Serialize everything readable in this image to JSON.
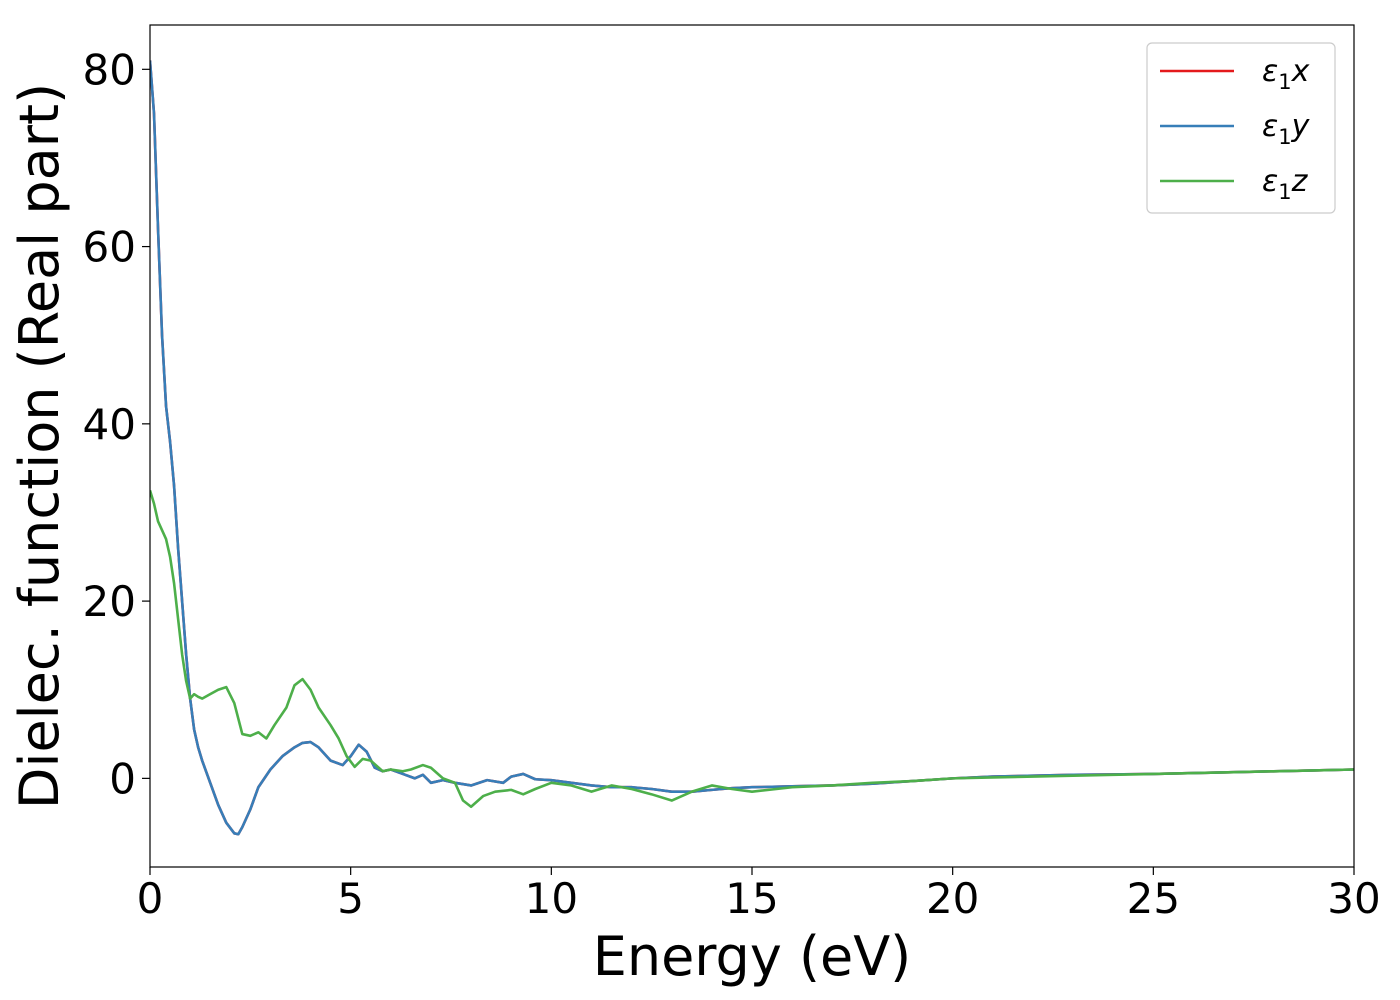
{
  "chart_data": {
    "type": "line",
    "title": "",
    "xlabel": "Energy (eV)",
    "ylabel": "Dielec. function (Real part)",
    "xlim": [
      0,
      30
    ],
    "ylim": [
      -10,
      85
    ],
    "xticks": [
      0,
      5,
      10,
      15,
      20,
      25,
      30
    ],
    "yticks": [
      0,
      20,
      40,
      60,
      80
    ],
    "grid": false,
    "legend_position": "top-right",
    "series": [
      {
        "name": "ε₁x",
        "legend_main": "ε",
        "legend_sub": "1",
        "legend_var": "x",
        "color": "#e41a1c",
        "x": [
          0,
          0.1,
          0.2,
          0.3,
          0.4,
          0.5,
          0.6,
          0.7,
          0.8,
          0.9,
          1.0,
          1.1,
          1.2,
          1.3,
          1.5,
          1.7,
          1.9,
          2.1,
          2.2,
          2.3,
          2.5,
          2.7,
          3.0,
          3.3,
          3.6,
          3.8,
          4.0,
          4.2,
          4.5,
          4.8,
          5.0,
          5.2,
          5.4,
          5.6,
          5.8,
          6.0,
          6.3,
          6.6,
          6.8,
          7.0,
          7.3,
          7.6,
          8.0,
          8.4,
          8.8,
          9.0,
          9.3,
          9.6,
          10.0,
          10.5,
          11.0,
          11.5,
          12.0,
          12.5,
          13.0,
          13.5,
          14.0,
          14.5,
          15.0,
          16.0,
          17.0,
          18.0,
          19.0,
          20.0,
          21.0,
          22.0,
          23.0,
          24.0,
          25.0,
          26.0,
          27.0,
          28.0,
          29.0,
          30.0
        ],
        "y": [
          81,
          75,
          62,
          50,
          42,
          38,
          33,
          26,
          20,
          14,
          9,
          5.5,
          3.5,
          2,
          -0.5,
          -3,
          -5,
          -6.2,
          -6.3,
          -5.5,
          -3.5,
          -1,
          1,
          2.5,
          3.5,
          4,
          4.1,
          3.5,
          2,
          1.5,
          2.5,
          3.8,
          3,
          1.2,
          0.8,
          1,
          0.5,
          0,
          0.4,
          -0.5,
          -0.2,
          -0.5,
          -0.8,
          -0.2,
          -0.5,
          0.2,
          0.5,
          -0.1,
          -0.2,
          -0.5,
          -0.8,
          -1,
          -1,
          -1.2,
          -1.5,
          -1.5,
          -1.3,
          -1.1,
          -1,
          -0.9,
          -0.8,
          -0.6,
          -0.3,
          0,
          0.2,
          0.3,
          0.4,
          0.45,
          0.5,
          0.6,
          0.7,
          0.8,
          0.9,
          1
        ]
      },
      {
        "name": "ε₁y",
        "legend_main": "ε",
        "legend_sub": "1",
        "legend_var": "y",
        "color": "#377eb8",
        "x": [
          0,
          0.1,
          0.2,
          0.3,
          0.4,
          0.5,
          0.6,
          0.7,
          0.8,
          0.9,
          1.0,
          1.1,
          1.2,
          1.3,
          1.5,
          1.7,
          1.9,
          2.1,
          2.2,
          2.3,
          2.5,
          2.7,
          3.0,
          3.3,
          3.6,
          3.8,
          4.0,
          4.2,
          4.5,
          4.8,
          5.0,
          5.2,
          5.4,
          5.6,
          5.8,
          6.0,
          6.3,
          6.6,
          6.8,
          7.0,
          7.3,
          7.6,
          8.0,
          8.4,
          8.8,
          9.0,
          9.3,
          9.6,
          10.0,
          10.5,
          11.0,
          11.5,
          12.0,
          12.5,
          13.0,
          13.5,
          14.0,
          14.5,
          15.0,
          16.0,
          17.0,
          18.0,
          19.0,
          20.0,
          21.0,
          22.0,
          23.0,
          24.0,
          25.0,
          26.0,
          27.0,
          28.0,
          29.0,
          30.0
        ],
        "y": [
          81,
          75,
          62,
          50,
          42,
          38,
          33,
          26,
          20,
          14,
          9,
          5.5,
          3.5,
          2,
          -0.5,
          -3,
          -5,
          -6.2,
          -6.3,
          -5.5,
          -3.5,
          -1,
          1,
          2.5,
          3.5,
          4,
          4.1,
          3.5,
          2,
          1.5,
          2.5,
          3.8,
          3,
          1.2,
          0.8,
          1,
          0.5,
          0,
          0.4,
          -0.5,
          -0.2,
          -0.5,
          -0.8,
          -0.2,
          -0.5,
          0.2,
          0.5,
          -0.1,
          -0.2,
          -0.5,
          -0.8,
          -1,
          -1,
          -1.2,
          -1.5,
          -1.5,
          -1.3,
          -1.1,
          -1,
          -0.9,
          -0.8,
          -0.6,
          -0.3,
          0,
          0.2,
          0.3,
          0.4,
          0.45,
          0.5,
          0.6,
          0.7,
          0.8,
          0.9,
          1
        ]
      },
      {
        "name": "ε₁z",
        "legend_main": "ε",
        "legend_sub": "1",
        "legend_var": "z",
        "color": "#4daf4a",
        "x": [
          0,
          0.1,
          0.2,
          0.3,
          0.4,
          0.5,
          0.6,
          0.7,
          0.8,
          0.9,
          1.0,
          1.1,
          1.2,
          1.3,
          1.5,
          1.7,
          1.9,
          2.1,
          2.3,
          2.5,
          2.7,
          2.9,
          3.1,
          3.4,
          3.6,
          3.8,
          4.0,
          4.2,
          4.5,
          4.7,
          4.9,
          5.1,
          5.3,
          5.5,
          5.8,
          6.0,
          6.3,
          6.5,
          6.8,
          7.0,
          7.3,
          7.6,
          7.8,
          8.0,
          8.3,
          8.6,
          9.0,
          9.3,
          9.6,
          10.0,
          10.5,
          11.0,
          11.5,
          12.0,
          12.5,
          13.0,
          13.5,
          14.0,
          14.5,
          15.0,
          16.0,
          17.0,
          18.0,
          19.0,
          20.0,
          21.0,
          22.0,
          23.0,
          24.0,
          25.0,
          26.0,
          27.0,
          28.0,
          29.0,
          30.0
        ],
        "y": [
          32.5,
          31,
          29,
          28,
          27,
          25,
          22,
          18,
          14,
          11,
          9,
          9.5,
          9.2,
          9,
          9.5,
          10,
          10.3,
          8.5,
          5,
          4.8,
          5.2,
          4.5,
          6,
          8,
          10.5,
          11.2,
          10,
          8,
          6,
          4.5,
          2.5,
          1.3,
          2.2,
          2,
          0.8,
          1,
          0.8,
          1,
          1.5,
          1.2,
          0,
          -0.5,
          -2.5,
          -3.2,
          -2,
          -1.5,
          -1.3,
          -1.8,
          -1.2,
          -0.5,
          -0.8,
          -1.5,
          -0.8,
          -1.2,
          -1.8,
          -2.5,
          -1.5,
          -0.8,
          -1.2,
          -1.5,
          -1,
          -0.8,
          -0.5,
          -0.3,
          0,
          0.1,
          0.2,
          0.3,
          0.4,
          0.5,
          0.6,
          0.7,
          0.8,
          0.9,
          1
        ]
      }
    ]
  }
}
